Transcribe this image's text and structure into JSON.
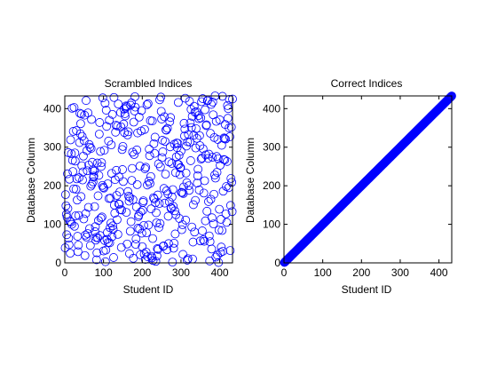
{
  "chart_data": [
    {
      "type": "scatter",
      "title": "Scrambled Indices",
      "xlabel": "Student ID",
      "ylabel": "Database Column",
      "xlim": [
        0,
        433
      ],
      "ylim": [
        0,
        433
      ],
      "xticks": [
        0,
        100,
        200,
        300,
        400
      ],
      "yticks": [
        0,
        100,
        200,
        300,
        400
      ],
      "marker": "circle",
      "marker_color": "#0000ff",
      "series": [
        {
          "n": 433,
          "pattern": "random-permutation"
        }
      ]
    },
    {
      "type": "scatter",
      "title": "Correct Indices",
      "xlabel": "Student ID",
      "ylabel": "Database Column",
      "xlim": [
        0,
        433
      ],
      "ylim": [
        0,
        433
      ],
      "xticks": [
        0,
        100,
        200,
        300,
        400
      ],
      "yticks": [
        0,
        100,
        200,
        300,
        400
      ],
      "marker": "circle",
      "marker_color": "#0000ff",
      "series": [
        {
          "n": 433,
          "pattern": "identity"
        }
      ]
    }
  ]
}
